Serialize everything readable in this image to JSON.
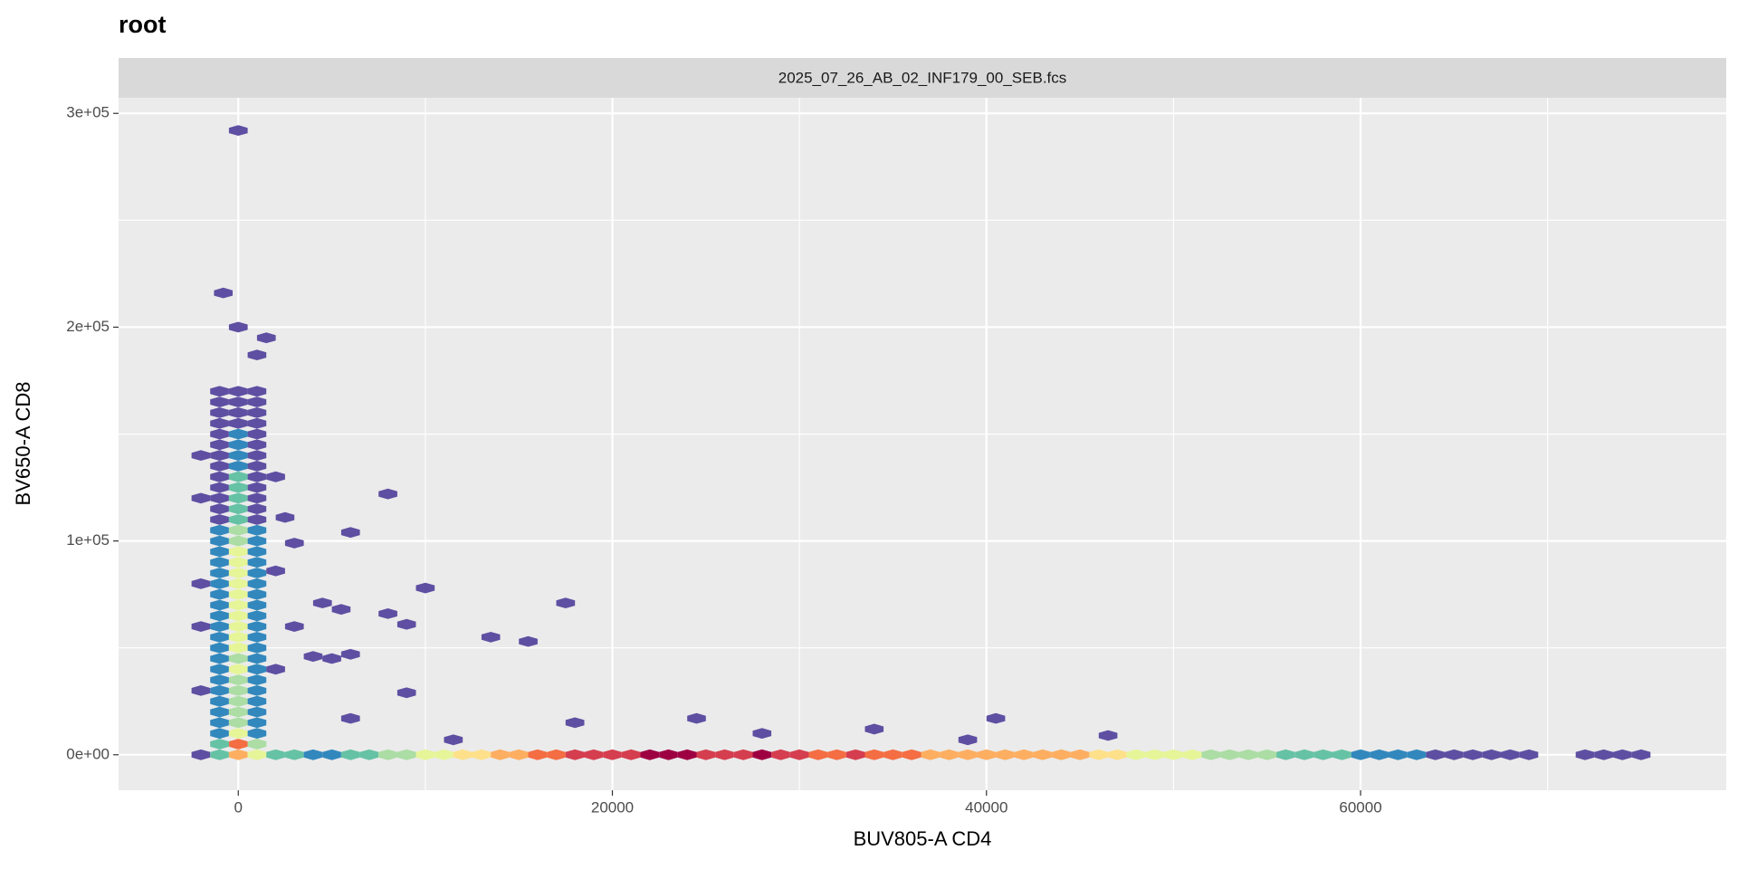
{
  "chart_data": {
    "type": "hexbin",
    "title": "root",
    "facet": "2025_07_26_AB_02_INF179_00_SEB.fcs",
    "xlabel": "BUV805-A CD4",
    "ylabel": "BV650-A CD8",
    "xlim": [
      -6400,
      79550
    ],
    "ylim": [
      -16600,
      307300
    ],
    "xticks": [
      0,
      20000,
      40000,
      60000
    ],
    "yticks": [
      {
        "value": 0,
        "label": "0e+00"
      },
      {
        "value": 100000,
        "label": "1e+05"
      },
      {
        "value": 200000,
        "label": "2e+05"
      },
      {
        "value": 300000,
        "label": "3e+05"
      }
    ],
    "xminor": [
      10000,
      30000,
      50000,
      70000
    ],
    "yminor": [
      50000,
      150000,
      250000
    ],
    "grid": true,
    "binwidth": [
      1000,
      5000
    ],
    "count_max": 100,
    "palette": [
      "#5e4fa2",
      "#3288bd",
      "#66c2a5",
      "#abdda4",
      "#e6f598",
      "#fee08b",
      "#fdae61",
      "#f46d43",
      "#d53e4f",
      "#9e0142"
    ],
    "cells": [
      [
        -2000,
        0,
        3
      ],
      [
        -1000,
        0,
        20
      ],
      [
        0,
        0,
        60
      ],
      [
        1000,
        0,
        40
      ],
      [
        2000,
        0,
        25
      ],
      [
        3000,
        0,
        20
      ],
      [
        4000,
        0,
        15
      ],
      [
        5000,
        0,
        15
      ],
      [
        6000,
        0,
        20
      ],
      [
        7000,
        0,
        25
      ],
      [
        8000,
        0,
        30
      ],
      [
        9000,
        0,
        35
      ],
      [
        10000,
        0,
        40
      ],
      [
        11000,
        0,
        45
      ],
      [
        12000,
        0,
        50
      ],
      [
        13000,
        0,
        55
      ],
      [
        14000,
        0,
        60
      ],
      [
        15000,
        0,
        65
      ],
      [
        16000,
        0,
        70
      ],
      [
        17000,
        0,
        75
      ],
      [
        18000,
        0,
        80
      ],
      [
        19000,
        0,
        85
      ],
      [
        20000,
        0,
        85
      ],
      [
        21000,
        0,
        85
      ],
      [
        22000,
        0,
        90
      ],
      [
        23000,
        0,
        100
      ],
      [
        24000,
        0,
        90
      ],
      [
        25000,
        0,
        85
      ],
      [
        26000,
        0,
        80
      ],
      [
        27000,
        0,
        80
      ],
      [
        28000,
        0,
        95
      ],
      [
        29000,
        0,
        85
      ],
      [
        30000,
        0,
        80
      ],
      [
        31000,
        0,
        75
      ],
      [
        32000,
        0,
        75
      ],
      [
        33000,
        0,
        80
      ],
      [
        34000,
        0,
        75
      ],
      [
        35000,
        0,
        70
      ],
      [
        36000,
        0,
        70
      ],
      [
        37000,
        0,
        65
      ],
      [
        38000,
        0,
        60
      ],
      [
        39000,
        0,
        60
      ],
      [
        40000,
        0,
        60
      ],
      [
        41000,
        0,
        60
      ],
      [
        42000,
        0,
        60
      ],
      [
        43000,
        0,
        65
      ],
      [
        44000,
        0,
        60
      ],
      [
        45000,
        0,
        60
      ],
      [
        46000,
        0,
        55
      ],
      [
        47000,
        0,
        50
      ],
      [
        48000,
        0,
        45
      ],
      [
        49000,
        0,
        45
      ],
      [
        50000,
        0,
        40
      ],
      [
        51000,
        0,
        40
      ],
      [
        52000,
        0,
        35
      ],
      [
        53000,
        0,
        35
      ],
      [
        54000,
        0,
        35
      ],
      [
        55000,
        0,
        30
      ],
      [
        56000,
        0,
        25
      ],
      [
        57000,
        0,
        20
      ],
      [
        58000,
        0,
        20
      ],
      [
        59000,
        0,
        20
      ],
      [
        60000,
        0,
        15
      ],
      [
        61000,
        0,
        15
      ],
      [
        62000,
        0,
        10
      ],
      [
        63000,
        0,
        10
      ],
      [
        64000,
        0,
        8
      ],
      [
        65000,
        0,
        6
      ],
      [
        66000,
        0,
        5
      ],
      [
        67000,
        0,
        5
      ],
      [
        68000,
        0,
        5
      ],
      [
        69000,
        0,
        4
      ],
      [
        72000,
        0,
        2
      ],
      [
        73000,
        0,
        2
      ],
      [
        74000,
        0,
        2
      ],
      [
        75000,
        0,
        2
      ],
      [
        -1000,
        5000,
        25
      ],
      [
        0,
        5000,
        70
      ],
      [
        1000,
        5000,
        30
      ],
      [
        -1000,
        10000,
        15
      ],
      [
        0,
        10000,
        45
      ],
      [
        1000,
        10000,
        16
      ],
      [
        -1000,
        15000,
        13
      ],
      [
        0,
        15000,
        38
      ],
      [
        1000,
        15000,
        13
      ],
      [
        -1000,
        20000,
        13
      ],
      [
        0,
        20000,
        38
      ],
      [
        1000,
        20000,
        12
      ],
      [
        -1000,
        25000,
        12
      ],
      [
        0,
        25000,
        36
      ],
      [
        1000,
        25000,
        12
      ],
      [
        -1000,
        30000,
        13
      ],
      [
        0,
        30000,
        38
      ],
      [
        1000,
        30000,
        13
      ],
      [
        -1000,
        35000,
        12
      ],
      [
        0,
        35000,
        36
      ],
      [
        1000,
        35000,
        12
      ],
      [
        -1000,
        40000,
        14
      ],
      [
        0,
        40000,
        40
      ],
      [
        1000,
        40000,
        13
      ],
      [
        -1000,
        45000,
        13
      ],
      [
        0,
        45000,
        38
      ],
      [
        1000,
        45000,
        12
      ],
      [
        -1000,
        50000,
        14
      ],
      [
        0,
        50000,
        42
      ],
      [
        1000,
        50000,
        14
      ],
      [
        -1000,
        55000,
        13
      ],
      [
        0,
        55000,
        40
      ],
      [
        1000,
        55000,
        13
      ],
      [
        -1000,
        60000,
        15
      ],
      [
        0,
        60000,
        44
      ],
      [
        1000,
        60000,
        14
      ],
      [
        -1000,
        65000,
        13
      ],
      [
        0,
        65000,
        40
      ],
      [
        1000,
        65000,
        13
      ],
      [
        -1000,
        70000,
        14
      ],
      [
        0,
        70000,
        42
      ],
      [
        1000,
        70000,
        14
      ],
      [
        -1000,
        75000,
        13
      ],
      [
        0,
        75000,
        40
      ],
      [
        1000,
        75000,
        13
      ],
      [
        -1000,
        80000,
        15
      ],
      [
        0,
        80000,
        45
      ],
      [
        1000,
        80000,
        15
      ],
      [
        -1000,
        85000,
        16
      ],
      [
        0,
        85000,
        48
      ],
      [
        1000,
        85000,
        15
      ],
      [
        -1000,
        90000,
        15
      ],
      [
        0,
        90000,
        45
      ],
      [
        1000,
        90000,
        14
      ],
      [
        -1000,
        95000,
        13
      ],
      [
        0,
        95000,
        40
      ],
      [
        1000,
        95000,
        13
      ],
      [
        -1000,
        100000,
        12
      ],
      [
        0,
        100000,
        36
      ],
      [
        1000,
        100000,
        12
      ],
      [
        -1000,
        105000,
        10
      ],
      [
        0,
        105000,
        30
      ],
      [
        1000,
        105000,
        10
      ],
      [
        -1000,
        110000,
        9
      ],
      [
        0,
        110000,
        28
      ],
      [
        1000,
        110000,
        9
      ],
      [
        -1000,
        115000,
        9
      ],
      [
        0,
        115000,
        26
      ],
      [
        1000,
        115000,
        8
      ],
      [
        -1000,
        120000,
        8
      ],
      [
        0,
        120000,
        24
      ],
      [
        1000,
        120000,
        8
      ],
      [
        -1000,
        125000,
        7
      ],
      [
        0,
        125000,
        22
      ],
      [
        1000,
        125000,
        7
      ],
      [
        -1000,
        130000,
        7
      ],
      [
        0,
        130000,
        20
      ],
      [
        1000,
        130000,
        6
      ],
      [
        -1000,
        135000,
        6
      ],
      [
        0,
        135000,
        18
      ],
      [
        1000,
        135000,
        6
      ],
      [
        -1000,
        140000,
        5
      ],
      [
        0,
        140000,
        16
      ],
      [
        1000,
        140000,
        5
      ],
      [
        -1000,
        145000,
        5
      ],
      [
        0,
        145000,
        14
      ],
      [
        1000,
        145000,
        4
      ],
      [
        -1000,
        150000,
        4
      ],
      [
        0,
        150000,
        12
      ],
      [
        1000,
        150000,
        4
      ],
      [
        -1000,
        155000,
        3
      ],
      [
        0,
        155000,
        9
      ],
      [
        1000,
        155000,
        3
      ],
      [
        -1000,
        160000,
        2
      ],
      [
        0,
        160000,
        7
      ],
      [
        1000,
        160000,
        2
      ],
      [
        -1000,
        165000,
        2
      ],
      [
        0,
        165000,
        5
      ],
      [
        1000,
        165000,
        1
      ],
      [
        -1000,
        170000,
        1
      ],
      [
        0,
        170000,
        3
      ],
      [
        1000,
        170000,
        1
      ],
      [
        -2000,
        30000,
        2
      ],
      [
        -2000,
        60000,
        2
      ],
      [
        -2000,
        80000,
        2
      ],
      [
        -2000,
        120000,
        2
      ],
      [
        -2000,
        140000,
        2
      ],
      [
        2000,
        40000,
        2
      ],
      [
        2000,
        130000,
        2
      ],
      [
        0,
        292000,
        1
      ],
      [
        -800,
        216000,
        1
      ],
      [
        0,
        200000,
        1
      ],
      [
        1500,
        195000,
        1
      ],
      [
        1000,
        187000,
        1
      ],
      [
        8000,
        122000,
        1
      ],
      [
        6000,
        104000,
        1
      ],
      [
        3000,
        99000,
        1
      ],
      [
        10000,
        78000,
        1
      ],
      [
        17500,
        71000,
        1
      ],
      [
        8000,
        66000,
        1
      ],
      [
        9000,
        61000,
        1
      ],
      [
        5500,
        68000,
        1
      ],
      [
        4500,
        71000,
        1
      ],
      [
        13500,
        55000,
        1
      ],
      [
        15500,
        53000,
        1
      ],
      [
        4000,
        46000,
        1
      ],
      [
        6000,
        47000,
        1
      ],
      [
        5000,
        45000,
        1
      ],
      [
        9000,
        29000,
        1
      ],
      [
        24500,
        17000,
        1
      ],
      [
        18000,
        15000,
        1
      ],
      [
        6000,
        17000,
        1
      ],
      [
        40500,
        17000,
        1
      ],
      [
        34000,
        12000,
        1
      ],
      [
        46500,
        9000,
        1
      ],
      [
        28000,
        10000,
        1
      ],
      [
        39000,
        7000,
        1
      ],
      [
        11500,
        7000,
        1
      ],
      [
        2500,
        111000,
        1
      ],
      [
        2000,
        86000,
        1
      ],
      [
        3000,
        60000,
        1
      ]
    ]
  }
}
